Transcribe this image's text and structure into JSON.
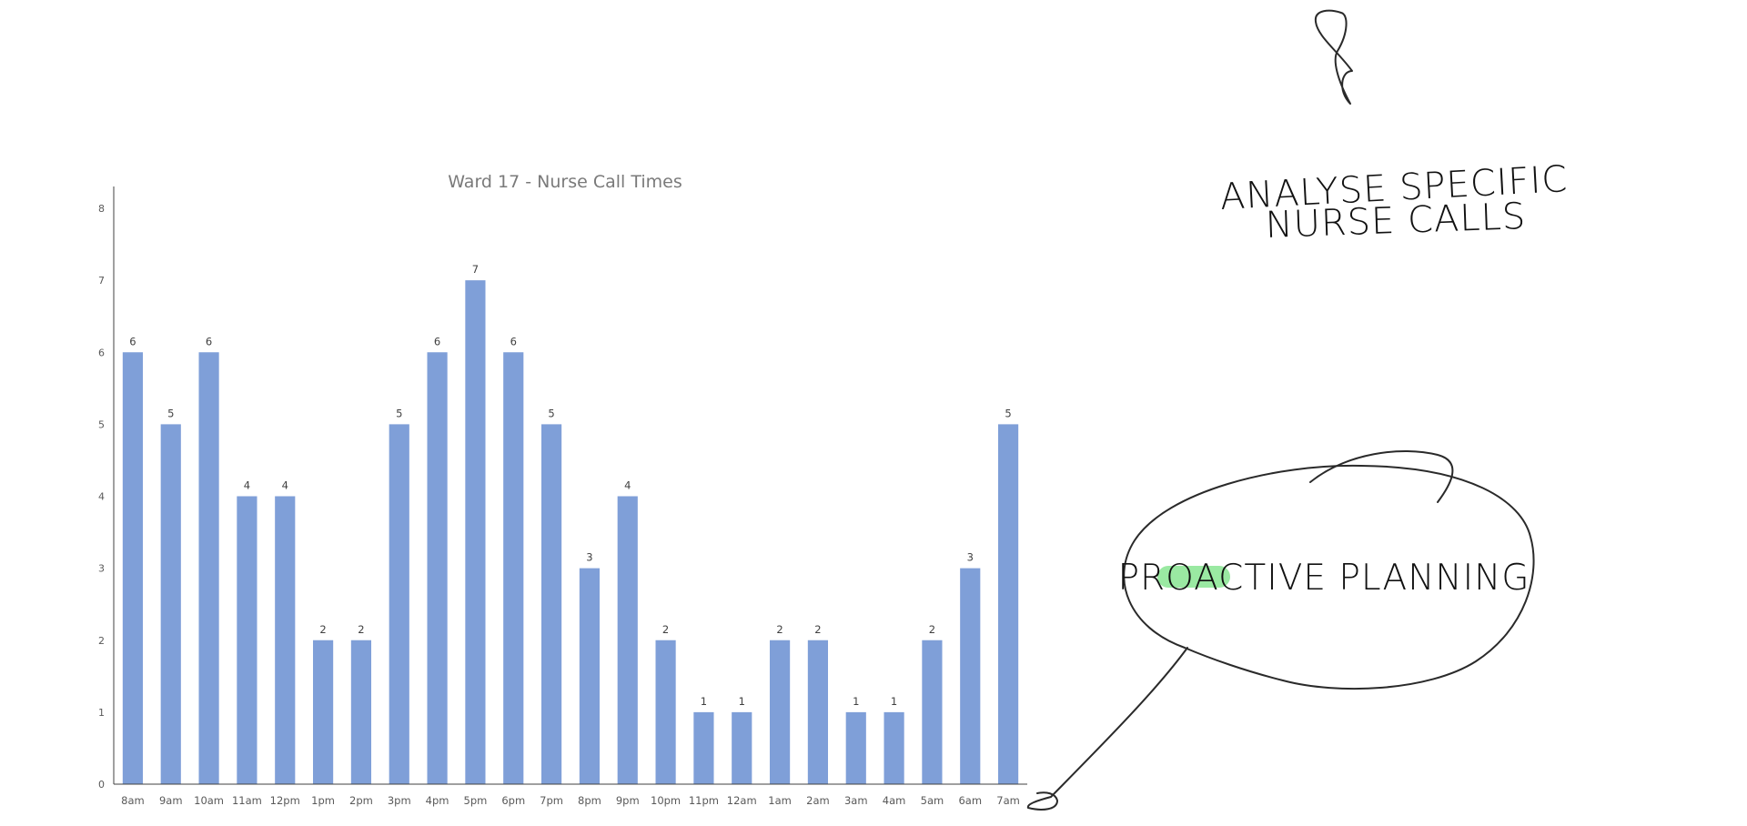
{
  "chart_data": {
    "type": "bar",
    "title": "Ward 17 - Nurse Call Times",
    "xlabel": "",
    "ylabel": "",
    "ylim": [
      0,
      8
    ],
    "yticks": [
      0,
      1,
      2,
      3,
      4,
      5,
      6,
      7,
      8
    ],
    "grid": false,
    "legend": "none",
    "bar_color": "#7f9fd8",
    "show_data_labels": true,
    "categories": [
      "8am",
      "9am",
      "10am",
      "11am",
      "12pm",
      "1pm",
      "2pm",
      "3pm",
      "4pm",
      "5pm",
      "6pm",
      "7pm",
      "8pm",
      "9pm",
      "10pm",
      "11pm",
      "12am",
      "1am",
      "2am",
      "3am",
      "4am",
      "5am",
      "6am",
      "7am"
    ],
    "values": [
      6,
      5,
      6,
      4,
      4,
      2,
      2,
      5,
      6,
      7,
      6,
      5,
      3,
      4,
      2,
      1,
      1,
      2,
      2,
      1,
      1,
      2,
      3,
      5
    ]
  },
  "annotations": {
    "note_top_line1": "ANALYSE SPECIFIC",
    "note_top_line2": "NURSE CALLS",
    "bubble_text": "PROACTIVE PLANNING",
    "highlight_color": "#6fe07a"
  }
}
